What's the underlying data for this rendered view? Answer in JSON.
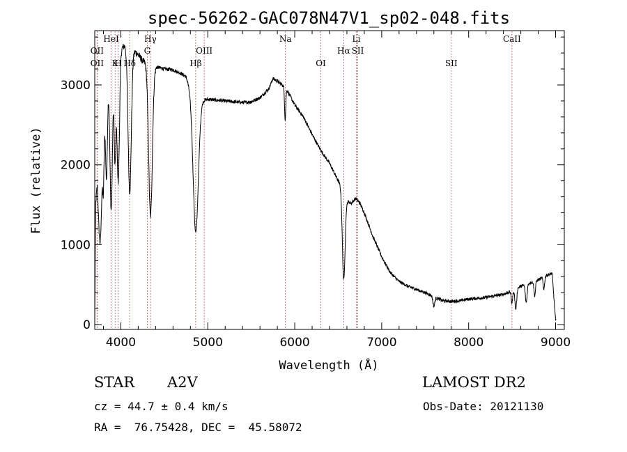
{
  "chart_data": {
    "type": "line",
    "title": "spec-56262-GAC078N47V1_sp02-048.fits",
    "xlabel": "Wavelength (Å)",
    "ylabel": "Flux (relative)",
    "xlim": [
      3700,
      9100
    ],
    "ylim": [
      -60,
      3680
    ],
    "xticks": [
      4000,
      5000,
      6000,
      7000,
      8000,
      9000
    ],
    "yticks": [
      0,
      1000,
      2000,
      3000
    ],
    "grid": false,
    "line_color": "#000000",
    "marker_color": "#b22222",
    "spectrum_anchors": [
      [
        3700,
        50
      ],
      [
        3710,
        1500
      ],
      [
        3730,
        1800
      ],
      [
        3760,
        1600
      ],
      [
        3790,
        2300
      ],
      [
        3830,
        2900
      ],
      [
        3870,
        3100
      ],
      [
        3920,
        3200
      ],
      [
        3960,
        3350
      ],
      [
        4000,
        3450
      ],
      [
        4050,
        3500
      ],
      [
        4150,
        3430
      ],
      [
        4200,
        3380
      ],
      [
        4250,
        3300
      ],
      [
        4300,
        3280
      ],
      [
        4400,
        3230
      ],
      [
        4500,
        3200
      ],
      [
        4600,
        3190
      ],
      [
        4700,
        3140
      ],
      [
        4750,
        3100
      ],
      [
        4800,
        2950
      ],
      [
        4900,
        2800
      ],
      [
        5000,
        2820
      ],
      [
        5200,
        2800
      ],
      [
        5400,
        2780
      ],
      [
        5500,
        2790
      ],
      [
        5600,
        2840
      ],
      [
        5700,
        2950
      ],
      [
        5750,
        3080
      ],
      [
        5800,
        3050
      ],
      [
        5900,
        2960
      ],
      [
        6000,
        2750
      ],
      [
        6100,
        2600
      ],
      [
        6200,
        2380
      ],
      [
        6300,
        2180
      ],
      [
        6400,
        2020
      ],
      [
        6500,
        1800
      ],
      [
        6550,
        1700
      ],
      [
        6600,
        1550
      ],
      [
        6650,
        1520
      ],
      [
        6700,
        1580
      ],
      [
        6750,
        1520
      ],
      [
        6800,
        1400
      ],
      [
        6900,
        1100
      ],
      [
        7000,
        850
      ],
      [
        7100,
        650
      ],
      [
        7200,
        540
      ],
      [
        7300,
        480
      ],
      [
        7400,
        440
      ],
      [
        7500,
        400
      ],
      [
        7600,
        350
      ],
      [
        7700,
        300
      ],
      [
        7800,
        290
      ],
      [
        7900,
        300
      ],
      [
        8000,
        320
      ],
      [
        8100,
        330
      ],
      [
        8200,
        340
      ],
      [
        8300,
        360
      ],
      [
        8400,
        380
      ],
      [
        8500,
        420
      ],
      [
        8600,
        480
      ],
      [
        8700,
        520
      ],
      [
        8800,
        560
      ],
      [
        8900,
        620
      ],
      [
        8960,
        640
      ],
      [
        9000,
        50
      ]
    ],
    "absorption_lines": [
      [
        3750,
        450,
        15
      ],
      [
        3771,
        600,
        13
      ],
      [
        3798,
        800,
        13
      ],
      [
        3835,
        1100,
        15
      ],
      [
        3889,
        1700,
        20
      ],
      [
        3933,
        1200,
        14
      ],
      [
        3970,
        1600,
        20
      ],
      [
        4102,
        1800,
        26
      ],
      [
        4341,
        1900,
        30
      ],
      [
        4861,
        1700,
        42
      ],
      [
        5890,
        400,
        10
      ],
      [
        6563,
        1100,
        22
      ],
      [
        7600,
        120,
        15
      ],
      [
        8498,
        150,
        12
      ],
      [
        8542,
        250,
        14
      ],
      [
        8662,
        230,
        14
      ],
      [
        8760,
        180,
        12
      ],
      [
        8865,
        150,
        12
      ]
    ],
    "markers": [
      {
        "label": "OII",
        "x": 3727,
        "row": 1
      },
      {
        "label": "OII",
        "x": 3727,
        "row": 2
      },
      {
        "label": "HeI",
        "x": 3889,
        "row": 0
      },
      {
        "label": "K",
        "x": 3934,
        "row": 2
      },
      {
        "label": "H",
        "x": 3969,
        "row": 2
      },
      {
        "label": "Hδ",
        "x": 4102,
        "row": 2
      },
      {
        "label": "Hγ",
        "x": 4340,
        "row": 0
      },
      {
        "label": "G",
        "x": 4304,
        "row": 1
      },
      {
        "label": "OIII",
        "x": 4959,
        "row": 1
      },
      {
        "label": "Hβ",
        "x": 4861,
        "row": 2
      },
      {
        "label": "Na",
        "x": 5893,
        "row": 0
      },
      {
        "label": "OI",
        "x": 6300,
        "row": 2
      },
      {
        "label": "Li",
        "x": 6708,
        "row": 0
      },
      {
        "label": "Hα",
        "x": 6563,
        "row": 1
      },
      {
        "label": "SII",
        "x": 6725,
        "row": 1
      },
      {
        "label": "SII",
        "x": 7800,
        "row": 2
      },
      {
        "label": "CaII",
        "x": 8498,
        "row": 0
      }
    ]
  },
  "info": {
    "object_type": "STAR",
    "subclass": "A2V",
    "survey": "LAMOST DR2",
    "redshift": "cz = 44.7 ± 0.4 km/s",
    "obs_date": "Obs-Date: 20121130",
    "coords": "RA =  76.75428, DEC =  45.58072"
  }
}
